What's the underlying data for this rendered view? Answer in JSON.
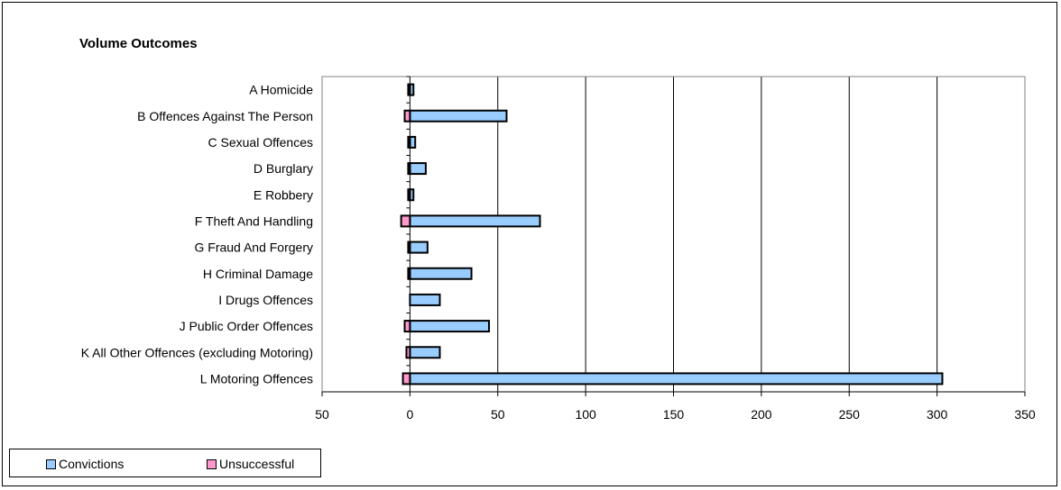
{
  "chart_data": {
    "type": "bar",
    "orientation": "horizontal",
    "stacked": true,
    "title": "Volume Outcomes",
    "categories": [
      "A Homicide",
      "B Offences Against The Person",
      "C Sexual Offences",
      "D Burglary",
      "E Robbery",
      "F Theft And Handling",
      "G Fraud And Forgery",
      "H Criminal Damage",
      "I Drugs Offences",
      "J Public Order Offences",
      "K All Other Offences (excluding Motoring)",
      "L Motoring Offences"
    ],
    "series": [
      {
        "name": "Convictions",
        "color": "#99ccff",
        "values": [
          2,
          55,
          3,
          9,
          2,
          74,
          10,
          35,
          17,
          45,
          17,
          303
        ]
      },
      {
        "name": "Unsuccessful",
        "color": "#ff99cc",
        "values": [
          -1,
          -3,
          -1,
          -1,
          -1,
          -5,
          -1,
          -1,
          0,
          -3,
          -2,
          -4
        ]
      }
    ],
    "xlim": [
      -50,
      350
    ],
    "xticks": [
      -50,
      0,
      50,
      100,
      150,
      200,
      250,
      300,
      350
    ],
    "xtick_labels": [
      "50",
      "0",
      "50",
      "100",
      "150",
      "200",
      "250",
      "300",
      "350"
    ],
    "grid": "vertical",
    "legend_position": "bottom-left",
    "legend": [
      "Convictions",
      "Unsuccessful"
    ]
  }
}
